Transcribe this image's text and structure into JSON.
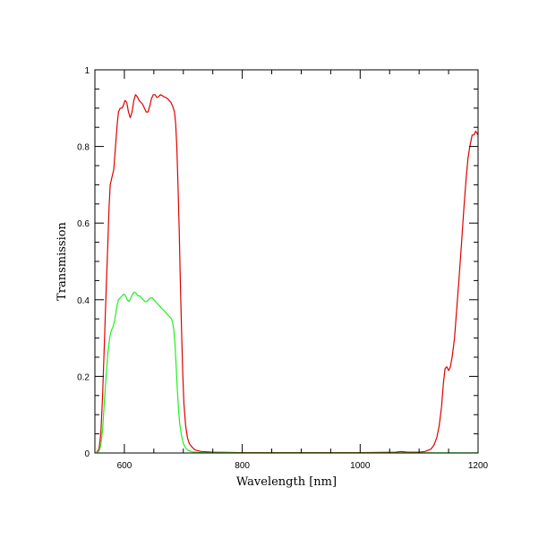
{
  "chart_data": {
    "type": "line",
    "xlabel": "Wavelength [nm]",
    "ylabel": "Transmission",
    "xlim": [
      550,
      1200
    ],
    "ylim": [
      0,
      1
    ],
    "grid": false,
    "legend": "none",
    "x_ticks": [
      {
        "value": 600,
        "label": "600"
      },
      {
        "value": 800,
        "label": "800"
      },
      {
        "value": 1000,
        "label": "1000"
      },
      {
        "value": 1200,
        "label": "1200"
      }
    ],
    "y_ticks": [
      {
        "value": 0,
        "label": "0"
      },
      {
        "value": 0.2,
        "label": "0.2"
      },
      {
        "value": 0.4,
        "label": "0.4"
      },
      {
        "value": 0.6,
        "label": "0.6"
      },
      {
        "value": 0.8,
        "label": "0.8"
      },
      {
        "value": 1,
        "label": "1"
      }
    ],
    "series": [
      {
        "color": "#e00000",
        "points": [
          [
            553,
            0.002
          ],
          [
            557,
            0.01
          ],
          [
            560,
            0.05
          ],
          [
            563,
            0.15
          ],
          [
            566,
            0.28
          ],
          [
            569,
            0.42
          ],
          [
            572,
            0.55
          ],
          [
            574,
            0.64
          ],
          [
            576,
            0.7
          ],
          [
            579,
            0.72
          ],
          [
            582,
            0.74
          ],
          [
            585,
            0.8
          ],
          [
            588,
            0.86
          ],
          [
            590,
            0.89
          ],
          [
            593,
            0.9
          ],
          [
            596,
            0.9
          ],
          [
            599,
            0.91
          ],
          [
            601,
            0.92
          ],
          [
            604,
            0.915
          ],
          [
            607,
            0.89
          ],
          [
            610,
            0.875
          ],
          [
            613,
            0.89
          ],
          [
            616,
            0.92
          ],
          [
            619,
            0.935
          ],
          [
            622,
            0.93
          ],
          [
            625,
            0.92
          ],
          [
            628,
            0.915
          ],
          [
            631,
            0.91
          ],
          [
            634,
            0.9
          ],
          [
            637,
            0.89
          ],
          [
            640,
            0.89
          ],
          [
            643,
            0.905
          ],
          [
            646,
            0.925
          ],
          [
            649,
            0.935
          ],
          [
            652,
            0.935
          ],
          [
            655,
            0.928
          ],
          [
            658,
            0.93
          ],
          [
            661,
            0.935
          ],
          [
            664,
            0.933
          ],
          [
            667,
            0.93
          ],
          [
            670,
            0.928
          ],
          [
            673,
            0.925
          ],
          [
            676,
            0.92
          ],
          [
            679,
            0.915
          ],
          [
            682,
            0.905
          ],
          [
            685,
            0.89
          ],
          [
            687,
            0.86
          ],
          [
            689,
            0.8
          ],
          [
            691,
            0.7
          ],
          [
            693,
            0.58
          ],
          [
            695,
            0.44
          ],
          [
            697,
            0.32
          ],
          [
            699,
            0.21
          ],
          [
            701,
            0.13
          ],
          [
            704,
            0.07
          ],
          [
            707,
            0.04
          ],
          [
            710,
            0.025
          ],
          [
            715,
            0.015
          ],
          [
            720,
            0.008
          ],
          [
            730,
            0.004
          ],
          [
            750,
            0.002
          ],
          [
            800,
            0.001
          ],
          [
            900,
            0.001
          ],
          [
            1000,
            0.001
          ],
          [
            1060,
            0.002
          ],
          [
            1070,
            0.004
          ],
          [
            1080,
            0.002
          ],
          [
            1100,
            0.002
          ],
          [
            1110,
            0.004
          ],
          [
            1120,
            0.01
          ],
          [
            1125,
            0.02
          ],
          [
            1130,
            0.04
          ],
          [
            1134,
            0.07
          ],
          [
            1138,
            0.12
          ],
          [
            1141,
            0.18
          ],
          [
            1144,
            0.22
          ],
          [
            1147,
            0.225
          ],
          [
            1150,
            0.215
          ],
          [
            1153,
            0.225
          ],
          [
            1156,
            0.25
          ],
          [
            1160,
            0.3
          ],
          [
            1164,
            0.38
          ],
          [
            1168,
            0.46
          ],
          [
            1172,
            0.55
          ],
          [
            1176,
            0.64
          ],
          [
            1180,
            0.72
          ],
          [
            1183,
            0.77
          ],
          [
            1186,
            0.8
          ],
          [
            1190,
            0.83
          ],
          [
            1193,
            0.83
          ],
          [
            1196,
            0.84
          ],
          [
            1200,
            0.83
          ]
        ]
      },
      {
        "color": "#22ee22",
        "points": [
          [
            553,
            0.001
          ],
          [
            557,
            0.005
          ],
          [
            560,
            0.02
          ],
          [
            563,
            0.06
          ],
          [
            566,
            0.13
          ],
          [
            569,
            0.2
          ],
          [
            572,
            0.26
          ],
          [
            575,
            0.3
          ],
          [
            578,
            0.32
          ],
          [
            581,
            0.33
          ],
          [
            584,
            0.35
          ],
          [
            587,
            0.38
          ],
          [
            590,
            0.4
          ],
          [
            593,
            0.405
          ],
          [
            596,
            0.41
          ],
          [
            599,
            0.415
          ],
          [
            602,
            0.41
          ],
          [
            605,
            0.4
          ],
          [
            608,
            0.395
          ],
          [
            611,
            0.405
          ],
          [
            614,
            0.415
          ],
          [
            617,
            0.42
          ],
          [
            620,
            0.417
          ],
          [
            623,
            0.41
          ],
          [
            626,
            0.41
          ],
          [
            629,
            0.405
          ],
          [
            632,
            0.4
          ],
          [
            635,
            0.395
          ],
          [
            638,
            0.395
          ],
          [
            641,
            0.4
          ],
          [
            644,
            0.405
          ],
          [
            647,
            0.405
          ],
          [
            650,
            0.4
          ],
          [
            653,
            0.395
          ],
          [
            656,
            0.39
          ],
          [
            659,
            0.385
          ],
          [
            662,
            0.38
          ],
          [
            665,
            0.375
          ],
          [
            668,
            0.37
          ],
          [
            671,
            0.365
          ],
          [
            674,
            0.36
          ],
          [
            677,
            0.355
          ],
          [
            680,
            0.35
          ],
          [
            682,
            0.34
          ],
          [
            684,
            0.32
          ],
          [
            686,
            0.28
          ],
          [
            688,
            0.22
          ],
          [
            690,
            0.16
          ],
          [
            692,
            0.11
          ],
          [
            694,
            0.075
          ],
          [
            697,
            0.045
          ],
          [
            700,
            0.025
          ],
          [
            704,
            0.013
          ],
          [
            708,
            0.007
          ],
          [
            715,
            0.003
          ],
          [
            730,
            0.001
          ],
          [
            800,
            0.0005
          ],
          [
            1000,
            0.0005
          ],
          [
            1100,
            0.0005
          ],
          [
            1200,
            0.0005
          ]
        ]
      }
    ]
  }
}
